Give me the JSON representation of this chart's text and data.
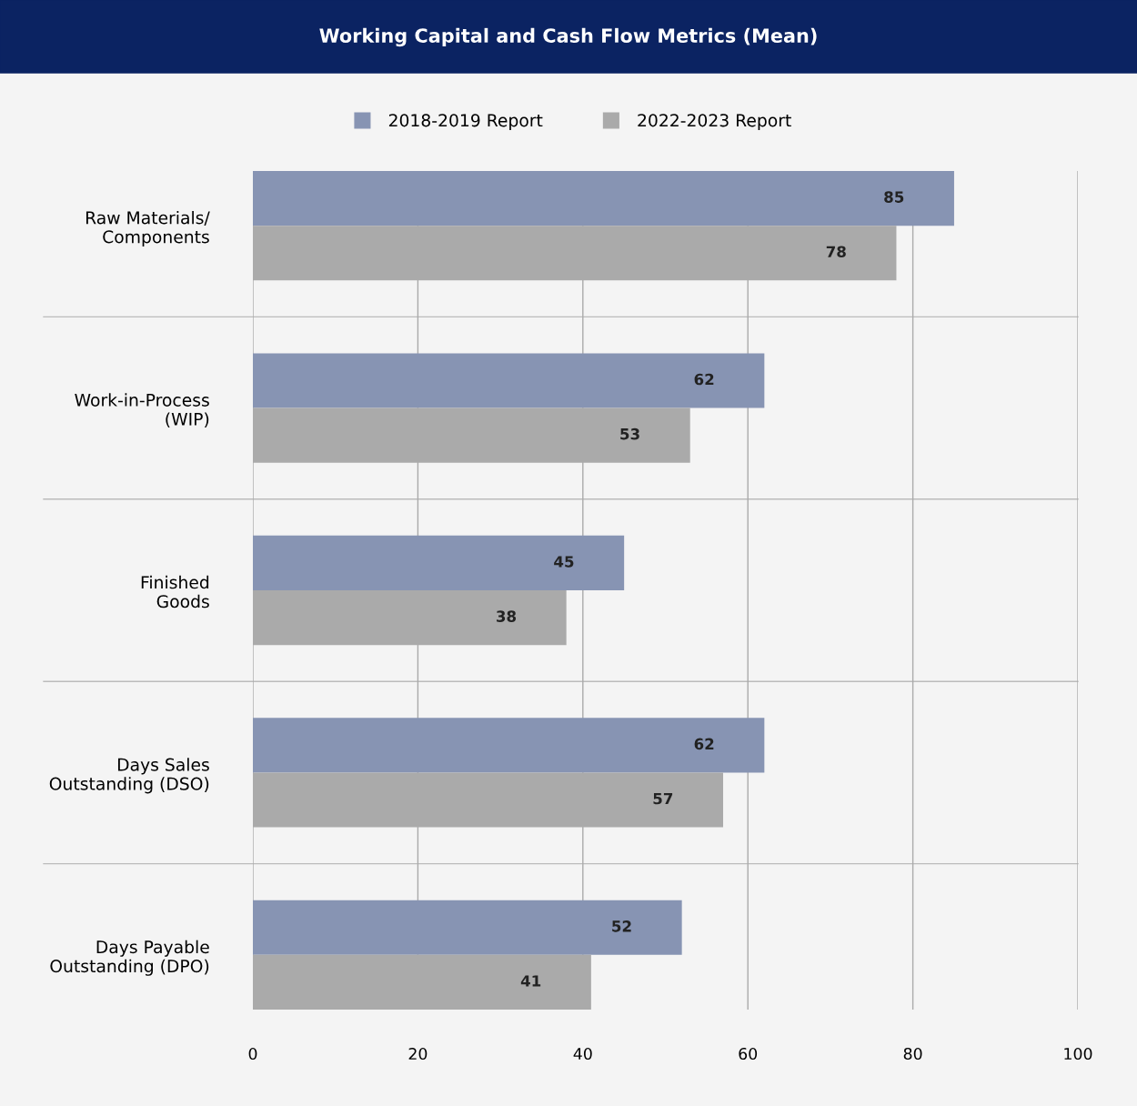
{
  "chart_data": {
    "type": "bar",
    "orientation": "horizontal",
    "title": "Working Capital and Cash Flow Metrics (Mean)",
    "categories": [
      "Raw Materials/\nComponents",
      "Work-in-Process\n(WIP)",
      "Finished\nGoods",
      "Days Sales\nOutstanding (DSO)",
      "Days Payable\nOutstanding (DPO)"
    ],
    "series": [
      {
        "name": "2018-2019 Report",
        "color": "#8794b3",
        "values": [
          85,
          62,
          45,
          62,
          52
        ]
      },
      {
        "name": "2022-2023 Report",
        "color": "#aaaaaa",
        "values": [
          78,
          53,
          38,
          57,
          41
        ]
      }
    ],
    "xlim": [
      0,
      100
    ],
    "xticks": [
      0,
      20,
      40,
      60,
      80,
      100
    ],
    "grid": true,
    "legend": "top",
    "data_labels": true
  }
}
